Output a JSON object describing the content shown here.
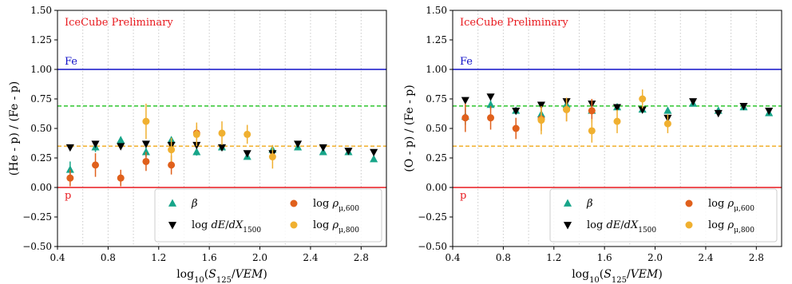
{
  "chart_data": [
    {
      "type": "scatter",
      "id": "left",
      "xlabel": "log10(S125/VEM)",
      "ylabel": "(He - p) / (Fe - p)",
      "xlim": [
        0.4,
        3.0
      ],
      "ylim": [
        -0.5,
        1.5
      ],
      "xticks": [
        0.4,
        0.8,
        1.2,
        1.6,
        2.0,
        2.4,
        2.8
      ],
      "yticks": [
        -0.5,
        -0.25,
        0.0,
        0.25,
        0.5,
        0.75,
        1.0,
        1.25,
        1.5
      ],
      "xtick_labels": [
        "0.4",
        "0.8",
        "1.2",
        "1.6",
        "2.0",
        "2.4",
        "2.8"
      ],
      "ytick_labels": [
        "−0.50",
        "−0.25",
        "0.00",
        "0.25",
        "0.50",
        "0.75",
        "1.00",
        "1.25",
        "1.50"
      ],
      "grid": "vertical-dotted-at-bin-edges",
      "grid_x": [
        0.6,
        0.8,
        1.0,
        1.2,
        1.4,
        1.6,
        1.8,
        2.0,
        2.2,
        2.4,
        2.6,
        2.8
      ],
      "annotation": "IceCube Preliminary",
      "hlines": [
        {
          "y": 1.0,
          "color": "#1010c8",
          "style": "solid",
          "label": "Fe"
        },
        {
          "y": 0.0,
          "color": "#e8191e",
          "style": "solid",
          "label": "p"
        },
        {
          "y": 0.69,
          "color": "#2fc52f",
          "style": "dashed",
          "label": ""
        },
        {
          "y": 0.35,
          "color": "#f0a818",
          "style": "dashed",
          "label": ""
        }
      ],
      "legend_position": "lower-right",
      "series": [
        {
          "name": "β",
          "marker": "triangle-up",
          "color": "#17a589",
          "x": [
            0.5,
            0.7,
            0.9,
            1.1,
            1.3,
            1.5,
            1.7,
            1.9,
            2.1,
            2.3,
            2.5,
            2.7,
            2.9
          ],
          "y": [
            0.15,
            0.34,
            0.4,
            0.3,
            0.4,
            0.3,
            0.34,
            0.26,
            0.32,
            0.34,
            0.3,
            0.3,
            0.24
          ],
          "err": [
            0.07,
            0.04,
            0.03,
            0.04,
            0.03,
            0.03,
            0.02,
            0.02,
            0.02,
            0.02,
            0.02,
            0.02,
            0.02
          ]
        },
        {
          "name": "log dE/dX1500",
          "marker": "triangle-down",
          "color": "#000000",
          "x": [
            0.5,
            0.7,
            0.9,
            1.1,
            1.3,
            1.5,
            1.7,
            1.9,
            2.1,
            2.3,
            2.5,
            2.7,
            2.9
          ],
          "y": [
            0.34,
            0.37,
            0.35,
            0.37,
            0.36,
            0.36,
            0.34,
            0.29,
            0.29,
            0.37,
            0.34,
            0.31,
            0.3
          ],
          "err": [
            0.02,
            0.02,
            0.02,
            0.02,
            0.02,
            0.02,
            0.02,
            0.02,
            0.02,
            0.02,
            0.02,
            0.02,
            0.02
          ]
        },
        {
          "name": "log ρμ,600",
          "marker": "circle",
          "color": "#e0601c",
          "x": [
            0.5,
            0.7,
            0.9,
            1.1,
            1.3,
            1.5
          ],
          "y": [
            0.08,
            0.19,
            0.08,
            0.22,
            0.19,
            0.46
          ],
          "err": [
            0.07,
            0.1,
            0.07,
            0.08,
            0.08,
            0.06
          ]
        },
        {
          "name": "log ρμ,800",
          "marker": "circle",
          "color": "#f0b030",
          "x": [
            1.1,
            1.3,
            1.5,
            1.7,
            1.9,
            2.1
          ],
          "y": [
            0.56,
            0.32,
            0.45,
            0.46,
            0.45,
            0.26
          ],
          "err": [
            0.15,
            0.1,
            0.1,
            0.1,
            0.08,
            0.1
          ]
        }
      ]
    },
    {
      "type": "scatter",
      "id": "right",
      "xlabel": "log10(S125/VEM)",
      "ylabel": "(O - p) / (Fe - p)",
      "xlim": [
        0.4,
        3.0
      ],
      "ylim": [
        -0.5,
        1.5
      ],
      "xticks": [
        0.4,
        0.8,
        1.2,
        1.6,
        2.0,
        2.4,
        2.8
      ],
      "yticks": [
        -0.5,
        -0.25,
        0.0,
        0.25,
        0.5,
        0.75,
        1.0,
        1.25,
        1.5
      ],
      "xtick_labels": [
        "0.4",
        "0.8",
        "1.2",
        "1.6",
        "2.0",
        "2.4",
        "2.8"
      ],
      "ytick_labels": [
        "−0.50",
        "−0.25",
        "0.00",
        "0.25",
        "0.50",
        "0.75",
        "1.00",
        "1.25",
        "1.50"
      ],
      "grid": "vertical-dotted-at-bin-edges",
      "grid_x": [
        0.6,
        0.8,
        1.0,
        1.2,
        1.4,
        1.6,
        1.8,
        2.0,
        2.2,
        2.4,
        2.6,
        2.8
      ],
      "annotation": "IceCube Preliminary",
      "hlines": [
        {
          "y": 1.0,
          "color": "#1010c8",
          "style": "solid",
          "label": "Fe"
        },
        {
          "y": 0.0,
          "color": "#e8191e",
          "style": "solid",
          "label": "p"
        },
        {
          "y": 0.69,
          "color": "#2fc52f",
          "style": "dashed",
          "label": ""
        },
        {
          "y": 0.35,
          "color": "#f0a818",
          "style": "dashed",
          "label": ""
        }
      ],
      "legend_position": "lower-right",
      "series": [
        {
          "name": "β",
          "marker": "triangle-up",
          "color": "#17a589",
          "x": [
            0.5,
            0.7,
            0.9,
            1.1,
            1.3,
            1.5,
            1.7,
            1.9,
            2.1,
            2.3,
            2.5,
            2.7,
            2.9
          ],
          "y": [
            0.6,
            0.7,
            0.65,
            0.62,
            0.7,
            0.65,
            0.68,
            0.66,
            0.65,
            0.71,
            0.65,
            0.68,
            0.63
          ],
          "err": [
            0.07,
            0.04,
            0.03,
            0.04,
            0.03,
            0.03,
            0.02,
            0.02,
            0.02,
            0.02,
            0.02,
            0.02,
            0.02
          ]
        },
        {
          "name": "log dE/dX1500",
          "marker": "triangle-down",
          "color": "#000000",
          "x": [
            0.5,
            0.7,
            0.9,
            1.1,
            1.3,
            1.5,
            1.7,
            1.9,
            2.1,
            2.3,
            2.5,
            2.7,
            2.9
          ],
          "y": [
            0.74,
            0.77,
            0.65,
            0.7,
            0.73,
            0.71,
            0.68,
            0.66,
            0.59,
            0.73,
            0.63,
            0.69,
            0.65
          ],
          "err": [
            0.02,
            0.02,
            0.02,
            0.02,
            0.02,
            0.02,
            0.02,
            0.02,
            0.02,
            0.02,
            0.02,
            0.02,
            0.02
          ]
        },
        {
          "name": "log ρμ,600",
          "marker": "circle",
          "color": "#e0601c",
          "x": [
            0.5,
            0.7,
            0.9,
            1.1,
            1.3,
            1.5
          ],
          "y": [
            0.59,
            0.59,
            0.5,
            0.58,
            0.66,
            0.65
          ],
          "err": [
            0.12,
            0.1,
            0.09,
            0.1,
            0.1,
            0.1
          ]
        },
        {
          "name": "log ρμ,800",
          "marker": "circle",
          "color": "#f0b030",
          "x": [
            1.1,
            1.3,
            1.5,
            1.7,
            1.9,
            2.1
          ],
          "y": [
            0.57,
            0.66,
            0.48,
            0.56,
            0.75,
            0.54
          ],
          "err": [
            0.12,
            0.1,
            0.1,
            0.1,
            0.08,
            0.08
          ]
        }
      ]
    }
  ]
}
